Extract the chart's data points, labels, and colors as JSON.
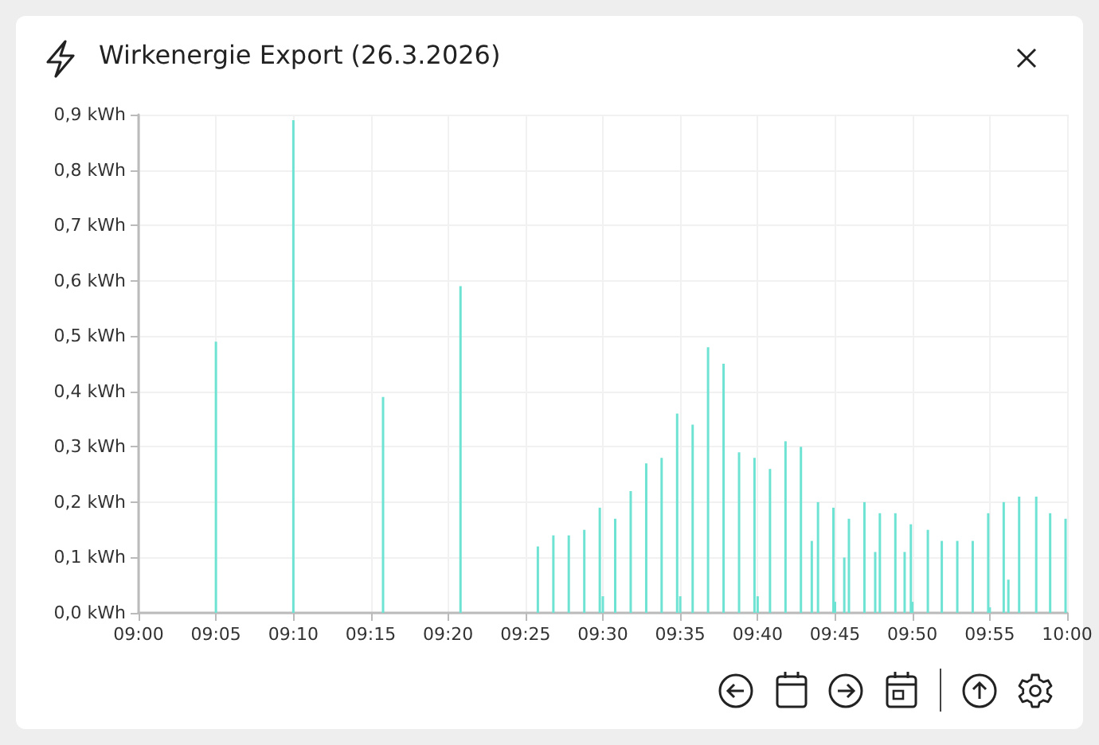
{
  "chart_data": {
    "type": "bar",
    "title": "Wirkenergie Export (26.3.2026)",
    "x": [
      9.0833,
      9.1667,
      9.2633,
      9.3467,
      9.43,
      9.4467,
      9.4633,
      9.48,
      9.4967,
      9.5,
      9.5133,
      9.53,
      9.5467,
      9.5633,
      9.58,
      9.5833,
      9.5967,
      9.6133,
      9.63,
      9.6467,
      9.6633,
      9.6667,
      9.68,
      9.6967,
      9.7133,
      9.725,
      9.7317,
      9.7483,
      9.75,
      9.76,
      9.765,
      9.7817,
      9.7933,
      9.7983,
      9.815,
      9.825,
      9.8317,
      9.8333,
      9.85,
      9.865,
      9.8817,
      9.8983,
      9.915,
      9.9167,
      9.9317,
      9.9367,
      9.9483,
      9.9667,
      9.9817,
      9.9983
    ],
    "values": [
      0.49,
      0.89,
      0.39,
      0.59,
      0.12,
      0.14,
      0.14,
      0.15,
      0.19,
      0.03,
      0.17,
      0.22,
      0.27,
      0.28,
      0.36,
      0.03,
      0.34,
      0.48,
      0.45,
      0.29,
      0.28,
      0.03,
      0.26,
      0.31,
      0.3,
      0.13,
      0.2,
      0.19,
      0.02,
      0.1,
      0.17,
      0.2,
      0.11,
      0.18,
      0.18,
      0.11,
      0.16,
      0.02,
      0.15,
      0.13,
      0.13,
      0.13,
      0.18,
      0.01,
      0.2,
      0.06,
      0.21,
      0.21,
      0.18,
      0.17
    ],
    "color": "#6fe3d3",
    "xlim": [
      9,
      10
    ],
    "xticks": [
      {
        "value": 9,
        "label": "09:00"
      },
      {
        "value": 9.0833,
        "label": "09:05"
      },
      {
        "value": 9.1667,
        "label": "09:10"
      },
      {
        "value": 9.25,
        "label": "09:15"
      },
      {
        "value": 9.3333,
        "label": "09:20"
      },
      {
        "value": 9.4167,
        "label": "09:25"
      },
      {
        "value": 9.5,
        "label": "09:30"
      },
      {
        "value": 9.5833,
        "label": "09:35"
      },
      {
        "value": 9.6667,
        "label": "09:40"
      },
      {
        "value": 9.75,
        "label": "09:45"
      },
      {
        "value": 9.8333,
        "label": "09:50"
      },
      {
        "value": 9.9167,
        "label": "09:55"
      },
      {
        "value": 10,
        "label": "10:00"
      }
    ],
    "ylim": [
      0,
      0.9
    ],
    "yticks": [
      {
        "value": 0,
        "label": "0,0 kWh"
      },
      {
        "value": 0.1,
        "label": "0,1 kWh"
      },
      {
        "value": 0.2,
        "label": "0,2 kWh"
      },
      {
        "value": 0.3,
        "label": "0,3 kWh"
      },
      {
        "value": 0.4,
        "label": "0,4 kWh"
      },
      {
        "value": 0.5,
        "label": "0,5 kWh"
      },
      {
        "value": 0.6,
        "label": "0,6 kWh"
      },
      {
        "value": 0.7,
        "label": "0,7 kWh"
      },
      {
        "value": 0.8,
        "label": "0,8 kWh"
      },
      {
        "value": 0.9,
        "label": "0,9 kWh"
      }
    ],
    "grid": true
  }
}
